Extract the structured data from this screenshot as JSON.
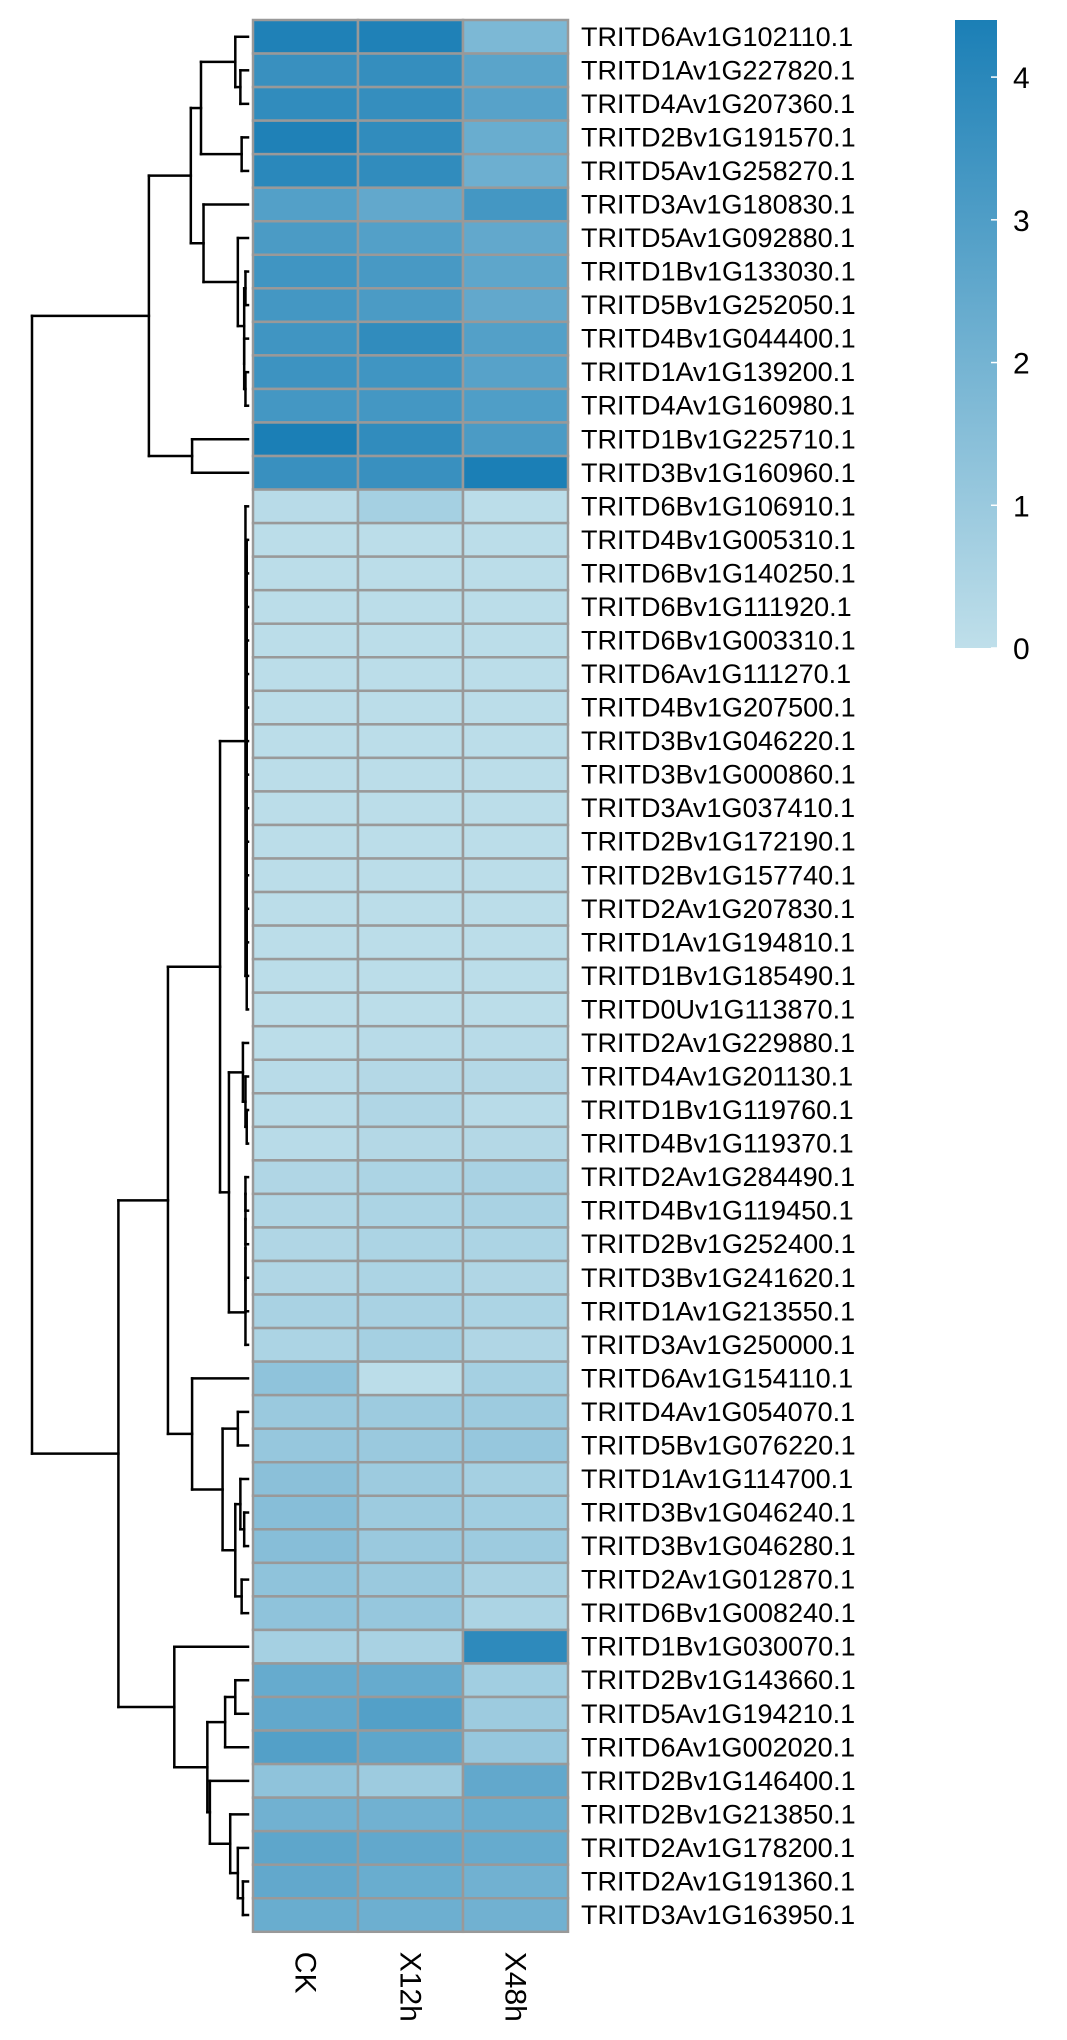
{
  "chart_data": {
    "type": "heatmap",
    "title": "",
    "columns": [
      "CK",
      "X12h",
      "X48h"
    ],
    "rows": [
      {
        "label": "TRITD6Av1G102110.1",
        "values": [
          4.3,
          4.3,
          1.8
        ]
      },
      {
        "label": "TRITD1Av1G227820.1",
        "values": [
          3.6,
          3.7,
          2.7
        ]
      },
      {
        "label": "TRITD4Av1G207360.1",
        "values": [
          3.8,
          3.7,
          2.8
        ]
      },
      {
        "label": "TRITD2Bv1G191570.1",
        "values": [
          4.3,
          3.8,
          2.3
        ]
      },
      {
        "label": "TRITD5Av1G258270.1",
        "values": [
          4.0,
          3.8,
          2.2
        ]
      },
      {
        "label": "TRITD3Av1G180830.1",
        "values": [
          2.9,
          2.5,
          3.3
        ]
      },
      {
        "label": "TRITD5Av1G092880.1",
        "values": [
          3.1,
          2.9,
          2.5
        ]
      },
      {
        "label": "TRITD1Bv1G133030.1",
        "values": [
          3.4,
          3.2,
          2.6
        ]
      },
      {
        "label": "TRITD5Bv1G252050.1",
        "values": [
          3.3,
          3.1,
          2.5
        ]
      },
      {
        "label": "TRITD4Bv1G044400.1",
        "values": [
          3.4,
          3.8,
          2.9
        ]
      },
      {
        "label": "TRITD1Av1G139200.1",
        "values": [
          3.5,
          3.4,
          2.8
        ]
      },
      {
        "label": "TRITD4Av1G160980.1",
        "values": [
          3.3,
          3.3,
          3.0
        ]
      },
      {
        "label": "TRITD1Bv1G225710.1",
        "values": [
          4.4,
          3.8,
          3.1
        ]
      },
      {
        "label": "TRITD3Bv1G160960.1",
        "values": [
          3.6,
          3.6,
          4.4
        ]
      },
      {
        "label": "TRITD6Bv1G106910.1",
        "values": [
          0.2,
          0.7,
          0.1
        ]
      },
      {
        "label": "TRITD4Bv1G005310.1",
        "values": [
          0.1,
          0.1,
          0.1
        ]
      },
      {
        "label": "TRITD6Bv1G140250.1",
        "values": [
          0.1,
          0.1,
          0.1
        ]
      },
      {
        "label": "TRITD6Bv1G111920.1",
        "values": [
          0.1,
          0.1,
          0.1
        ]
      },
      {
        "label": "TRITD6Bv1G003310.1",
        "values": [
          0.1,
          0.1,
          0.1
        ]
      },
      {
        "label": "TRITD6Av1G111270.1",
        "values": [
          0.1,
          0.1,
          0.1
        ]
      },
      {
        "label": "TRITD4Bv1G207500.1",
        "values": [
          0.1,
          0.1,
          0.1
        ]
      },
      {
        "label": "TRITD3Bv1G046220.1",
        "values": [
          0.1,
          0.1,
          0.1
        ]
      },
      {
        "label": "TRITD3Bv1G000860.1",
        "values": [
          0.1,
          0.1,
          0.1
        ]
      },
      {
        "label": "TRITD3Av1G037410.1",
        "values": [
          0.1,
          0.1,
          0.1
        ]
      },
      {
        "label": "TRITD2Bv1G172190.1",
        "values": [
          0.1,
          0.1,
          0.1
        ]
      },
      {
        "label": "TRITD2Bv1G157740.1",
        "values": [
          0.1,
          0.1,
          0.1
        ]
      },
      {
        "label": "TRITD2Av1G207830.1",
        "values": [
          0.1,
          0.1,
          0.1
        ]
      },
      {
        "label": "TRITD1Av1G194810.1",
        "values": [
          0.1,
          0.1,
          0.1
        ]
      },
      {
        "label": "TRITD1Bv1G185490.1",
        "values": [
          0.1,
          0.1,
          0.1
        ]
      },
      {
        "label": "TRITD0Uv1G113870.1",
        "values": [
          0.1,
          0.1,
          0.1
        ]
      },
      {
        "label": "TRITD2Av1G229880.1",
        "values": [
          0.1,
          0.2,
          0.2
        ]
      },
      {
        "label": "TRITD4Av1G201130.1",
        "values": [
          0.2,
          0.3,
          0.3
        ]
      },
      {
        "label": "TRITD1Bv1G119760.1",
        "values": [
          0.2,
          0.4,
          0.2
        ]
      },
      {
        "label": "TRITD4Bv1G119370.1",
        "values": [
          0.2,
          0.3,
          0.3
        ]
      },
      {
        "label": "TRITD2Av1G284490.1",
        "values": [
          0.4,
          0.5,
          0.6
        ]
      },
      {
        "label": "TRITD4Bv1G119450.1",
        "values": [
          0.4,
          0.5,
          0.6
        ]
      },
      {
        "label": "TRITD2Bv1G252400.1",
        "values": [
          0.4,
          0.5,
          0.5
        ]
      },
      {
        "label": "TRITD3Bv1G241620.1",
        "values": [
          0.4,
          0.5,
          0.4
        ]
      },
      {
        "label": "TRITD1Av1G213550.1",
        "values": [
          0.6,
          0.6,
          0.5
        ]
      },
      {
        "label": "TRITD3Av1G250000.1",
        "values": [
          0.5,
          0.7,
          0.4
        ]
      },
      {
        "label": "TRITD6Av1G154110.1",
        "values": [
          1.3,
          0.1,
          0.7
        ]
      },
      {
        "label": "TRITD4Av1G054070.1",
        "values": [
          1.0,
          0.9,
          0.9
        ]
      },
      {
        "label": "TRITD5Bv1G076220.1",
        "values": [
          1.1,
          1.0,
          1.1
        ]
      },
      {
        "label": "TRITD1Av1G114700.1",
        "values": [
          1.4,
          0.9,
          0.7
        ]
      },
      {
        "label": "TRITD3Bv1G046240.1",
        "values": [
          1.5,
          0.9,
          0.8
        ]
      },
      {
        "label": "TRITD3Bv1G046280.1",
        "values": [
          1.5,
          1.0,
          0.9
        ]
      },
      {
        "label": "TRITD2Av1G012870.1",
        "values": [
          1.3,
          1.0,
          0.6
        ]
      },
      {
        "label": "TRITD6Bv1G008240.1",
        "values": [
          1.3,
          1.1,
          0.5
        ]
      },
      {
        "label": "TRITD1Bv1G030070.1",
        "values": [
          0.7,
          0.6,
          3.9
        ]
      },
      {
        "label": "TRITD2Bv1G143660.1",
        "values": [
          2.4,
          2.4,
          0.8
        ]
      },
      {
        "label": "TRITD5Av1G194210.1",
        "values": [
          2.5,
          2.9,
          0.9
        ]
      },
      {
        "label": "TRITD6Av1G002020.1",
        "values": [
          2.9,
          2.6,
          1.1
        ]
      },
      {
        "label": "TRITD2Bv1G146400.1",
        "values": [
          1.3,
          0.9,
          2.5
        ]
      },
      {
        "label": "TRITD2Bv1G213850.1",
        "values": [
          2.1,
          2.1,
          2.3
        ]
      },
      {
        "label": "TRITD2Av1G178200.1",
        "values": [
          2.6,
          2.5,
          2.4
        ]
      },
      {
        "label": "TRITD2Av1G191360.1",
        "values": [
          2.5,
          2.3,
          2.1
        ]
      },
      {
        "label": "TRITD3Av1G163950.1",
        "values": [
          2.3,
          2.2,
          2.1
        ]
      }
    ],
    "value_range": [
      0,
      4.4
    ],
    "color_scale": {
      "low": "#bfdfea",
      "high": "#1b7fb6"
    },
    "cell_border_color": "#999999",
    "legend": {
      "position": "top-right",
      "ticks": [
        0,
        1,
        2,
        3,
        4
      ]
    },
    "row_dendrogram": true,
    "grid": false
  }
}
